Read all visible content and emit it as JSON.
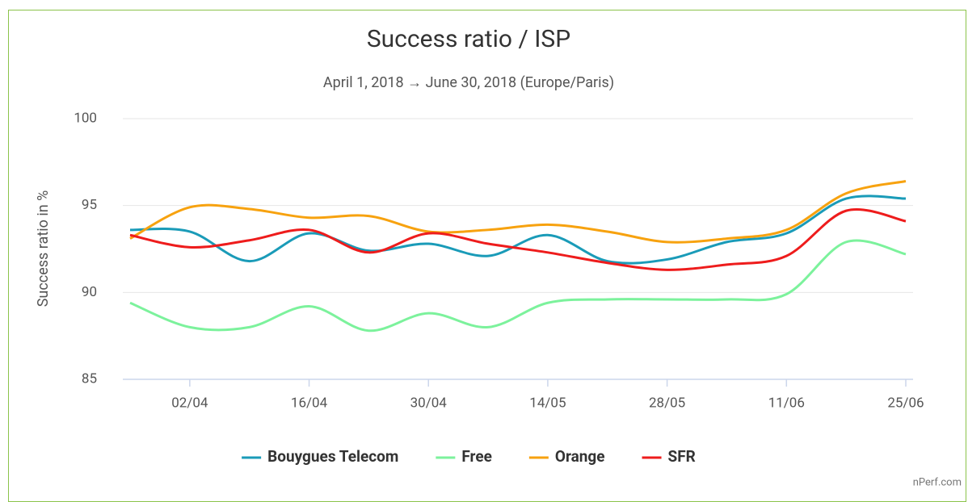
{
  "chart_data": {
    "type": "line",
    "title": "Success ratio / ISP",
    "subtitle": "April 1, 2018 → June 30, 2018 (Europe/Paris)",
    "y_label": "Success ratio in %",
    "credit": "nPerf.com",
    "categories": [
      null,
      "02/04",
      null,
      "16/04",
      null,
      "30/04",
      null,
      "14/05",
      null,
      "28/05",
      null,
      "11/06",
      null,
      "25/06"
    ],
    "ylim": [
      85,
      100
    ],
    "yticks": [
      85,
      90,
      95,
      100
    ],
    "grid": true,
    "legend": "bottom",
    "series": [
      {
        "name": "Bouygues Telecom",
        "color": "#1a9bb8",
        "values": [
          93.6,
          93.5,
          91.8,
          93.4,
          92.4,
          92.8,
          92.1,
          93.3,
          91.8,
          91.9,
          92.9,
          93.4,
          95.4,
          95.4
        ]
      },
      {
        "name": "Free",
        "color": "#7cf29c",
        "values": [
          89.4,
          88.0,
          88.0,
          89.2,
          87.8,
          88.8,
          88.0,
          89.4,
          89.6,
          89.6,
          89.6,
          89.9,
          92.9,
          92.2
        ]
      },
      {
        "name": "Orange",
        "color": "#f7a20f",
        "values": [
          93.1,
          94.9,
          94.8,
          94.3,
          94.4,
          93.5,
          93.6,
          93.9,
          93.5,
          92.9,
          93.1,
          93.6,
          95.7,
          96.4
        ]
      },
      {
        "name": "SFR",
        "color": "#ee1c1c",
        "values": [
          93.3,
          92.6,
          93.0,
          93.6,
          92.3,
          93.4,
          92.8,
          92.3,
          91.7,
          91.3,
          91.6,
          92.1,
          94.7,
          94.1
        ]
      }
    ]
  }
}
